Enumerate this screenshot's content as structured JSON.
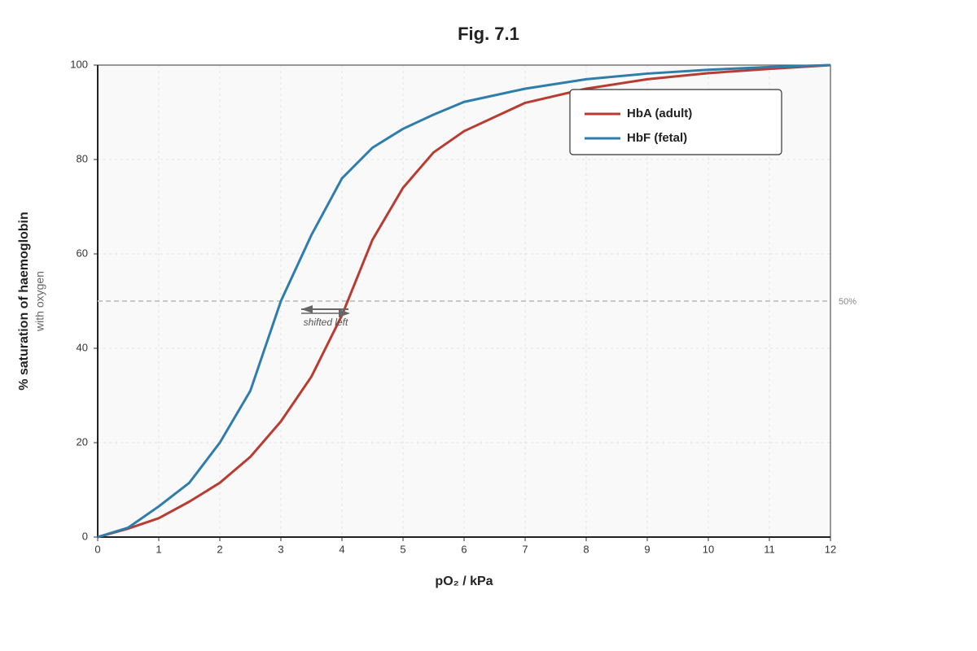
{
  "chart_data": {
    "type": "line",
    "title": "Fig. 7.1",
    "y_label": "% saturation of haemoglobin",
    "y_sublabel": "with oxygen",
    "x_label": "pO₂ / kPa",
    "x": [
      0,
      0.5,
      1,
      1.5,
      2,
      2.5,
      3,
      3.5,
      4,
      4.5,
      5,
      5.5,
      6,
      7,
      8,
      9,
      10,
      11,
      12
    ],
    "series": [
      {
        "name": "HbA (adult)",
        "color": "#b83c32",
        "values": [
          0,
          1.8,
          4,
          7.5,
          11.5,
          17,
          24.5,
          34,
          47,
          63,
          74,
          81.5,
          86,
          92,
          95,
          97,
          98.3,
          99.2,
          100
        ]
      },
      {
        "name": "HbF (fetal)",
        "color": "#2e7dab",
        "values": [
          0,
          2,
          6.5,
          11.5,
          20,
          31,
          50,
          64,
          76,
          82.5,
          86.5,
          89.5,
          92.2,
          95,
          97,
          98.2,
          99,
          99.6,
          100
        ]
      }
    ],
    "xlim": [
      0,
      12
    ],
    "xticks": [
      0,
      1,
      2,
      3,
      4,
      5,
      6,
      7,
      8,
      9,
      10,
      11,
      12
    ],
    "ylim": [
      0,
      100
    ],
    "yticks": [
      0,
      20,
      40,
      60,
      80,
      100
    ],
    "grid": true,
    "reference_line": {
      "value": 50,
      "label": "50%"
    },
    "annotation": "shifted left",
    "legend": "upper right"
  }
}
